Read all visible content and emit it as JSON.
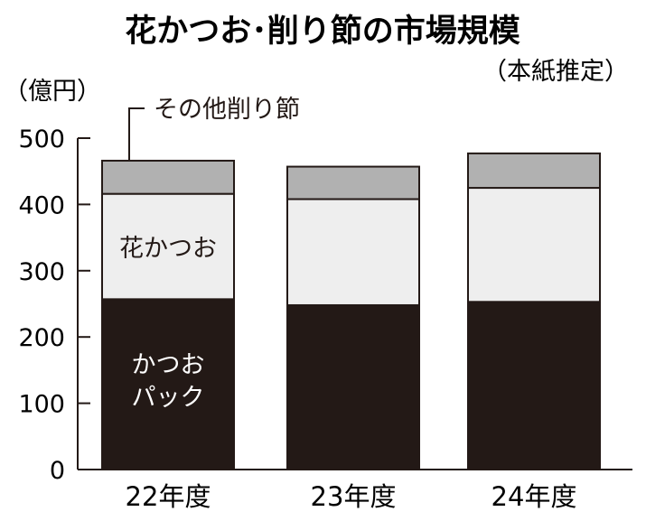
{
  "chart_data": {
    "type": "bar",
    "stacked": true,
    "title": "花かつお･削り節の市場規模",
    "subtitle": "（本紙推定）",
    "ylabel": "（億円）",
    "categories": [
      "22年度",
      "23年度",
      "24年度"
    ],
    "yticks": [
      "0",
      "100",
      "200",
      "300",
      "400",
      "500"
    ],
    "ylim": [
      0,
      500
    ],
    "series": [
      {
        "name": "かつおパック",
        "label_lines": [
          "かつお",
          "パック"
        ],
        "values": [
          257,
          248,
          253
        ],
        "color": "#231916"
      },
      {
        "name": "花かつお",
        "label_lines": [
          "花かつお"
        ],
        "values": [
          159,
          160,
          172
        ],
        "color": "#eeeeee"
      },
      {
        "name": "その他削り節",
        "label_lines": [
          "その他削り節"
        ],
        "values": [
          50,
          49,
          52
        ],
        "color": "#b1b1b1"
      }
    ],
    "label_colors": {
      "on_dark": "#ffffff",
      "on_light": "#231916"
    },
    "legend": "inline"
  }
}
